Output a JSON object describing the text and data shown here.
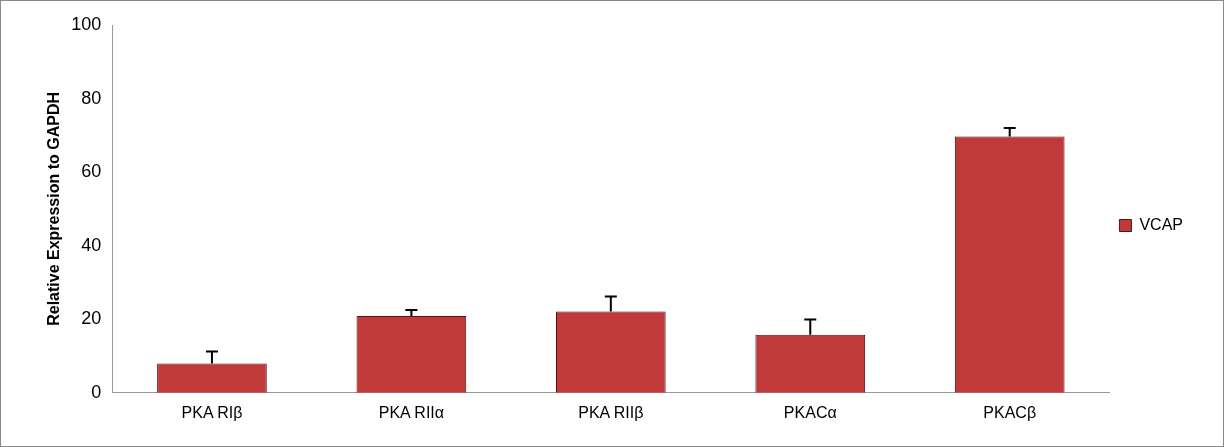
{
  "chart_data": {
    "type": "bar",
    "ylabel": "Relative Expression to GAPDH",
    "categories": [
      "PKA RIβ",
      "PKA RIIα",
      "PKA RIIβ",
      "PKACα",
      "PKACβ"
    ],
    "series": [
      {
        "name": "VCAP",
        "color": "#c0393b",
        "values": [
          8.0,
          20.9,
          22.1,
          15.8,
          69.7
        ],
        "errors": [
          [
            8.0,
            11.2
          ],
          [
            20.9,
            22.5
          ],
          [
            22.1,
            26.2
          ],
          [
            15.8,
            19.9
          ],
          [
            69.7,
            72.0
          ]
        ]
      }
    ],
    "ylim": [
      0,
      100
    ],
    "yticks": [
      0,
      20,
      40,
      60,
      80,
      100
    ],
    "grid": false,
    "legend": "right"
  }
}
